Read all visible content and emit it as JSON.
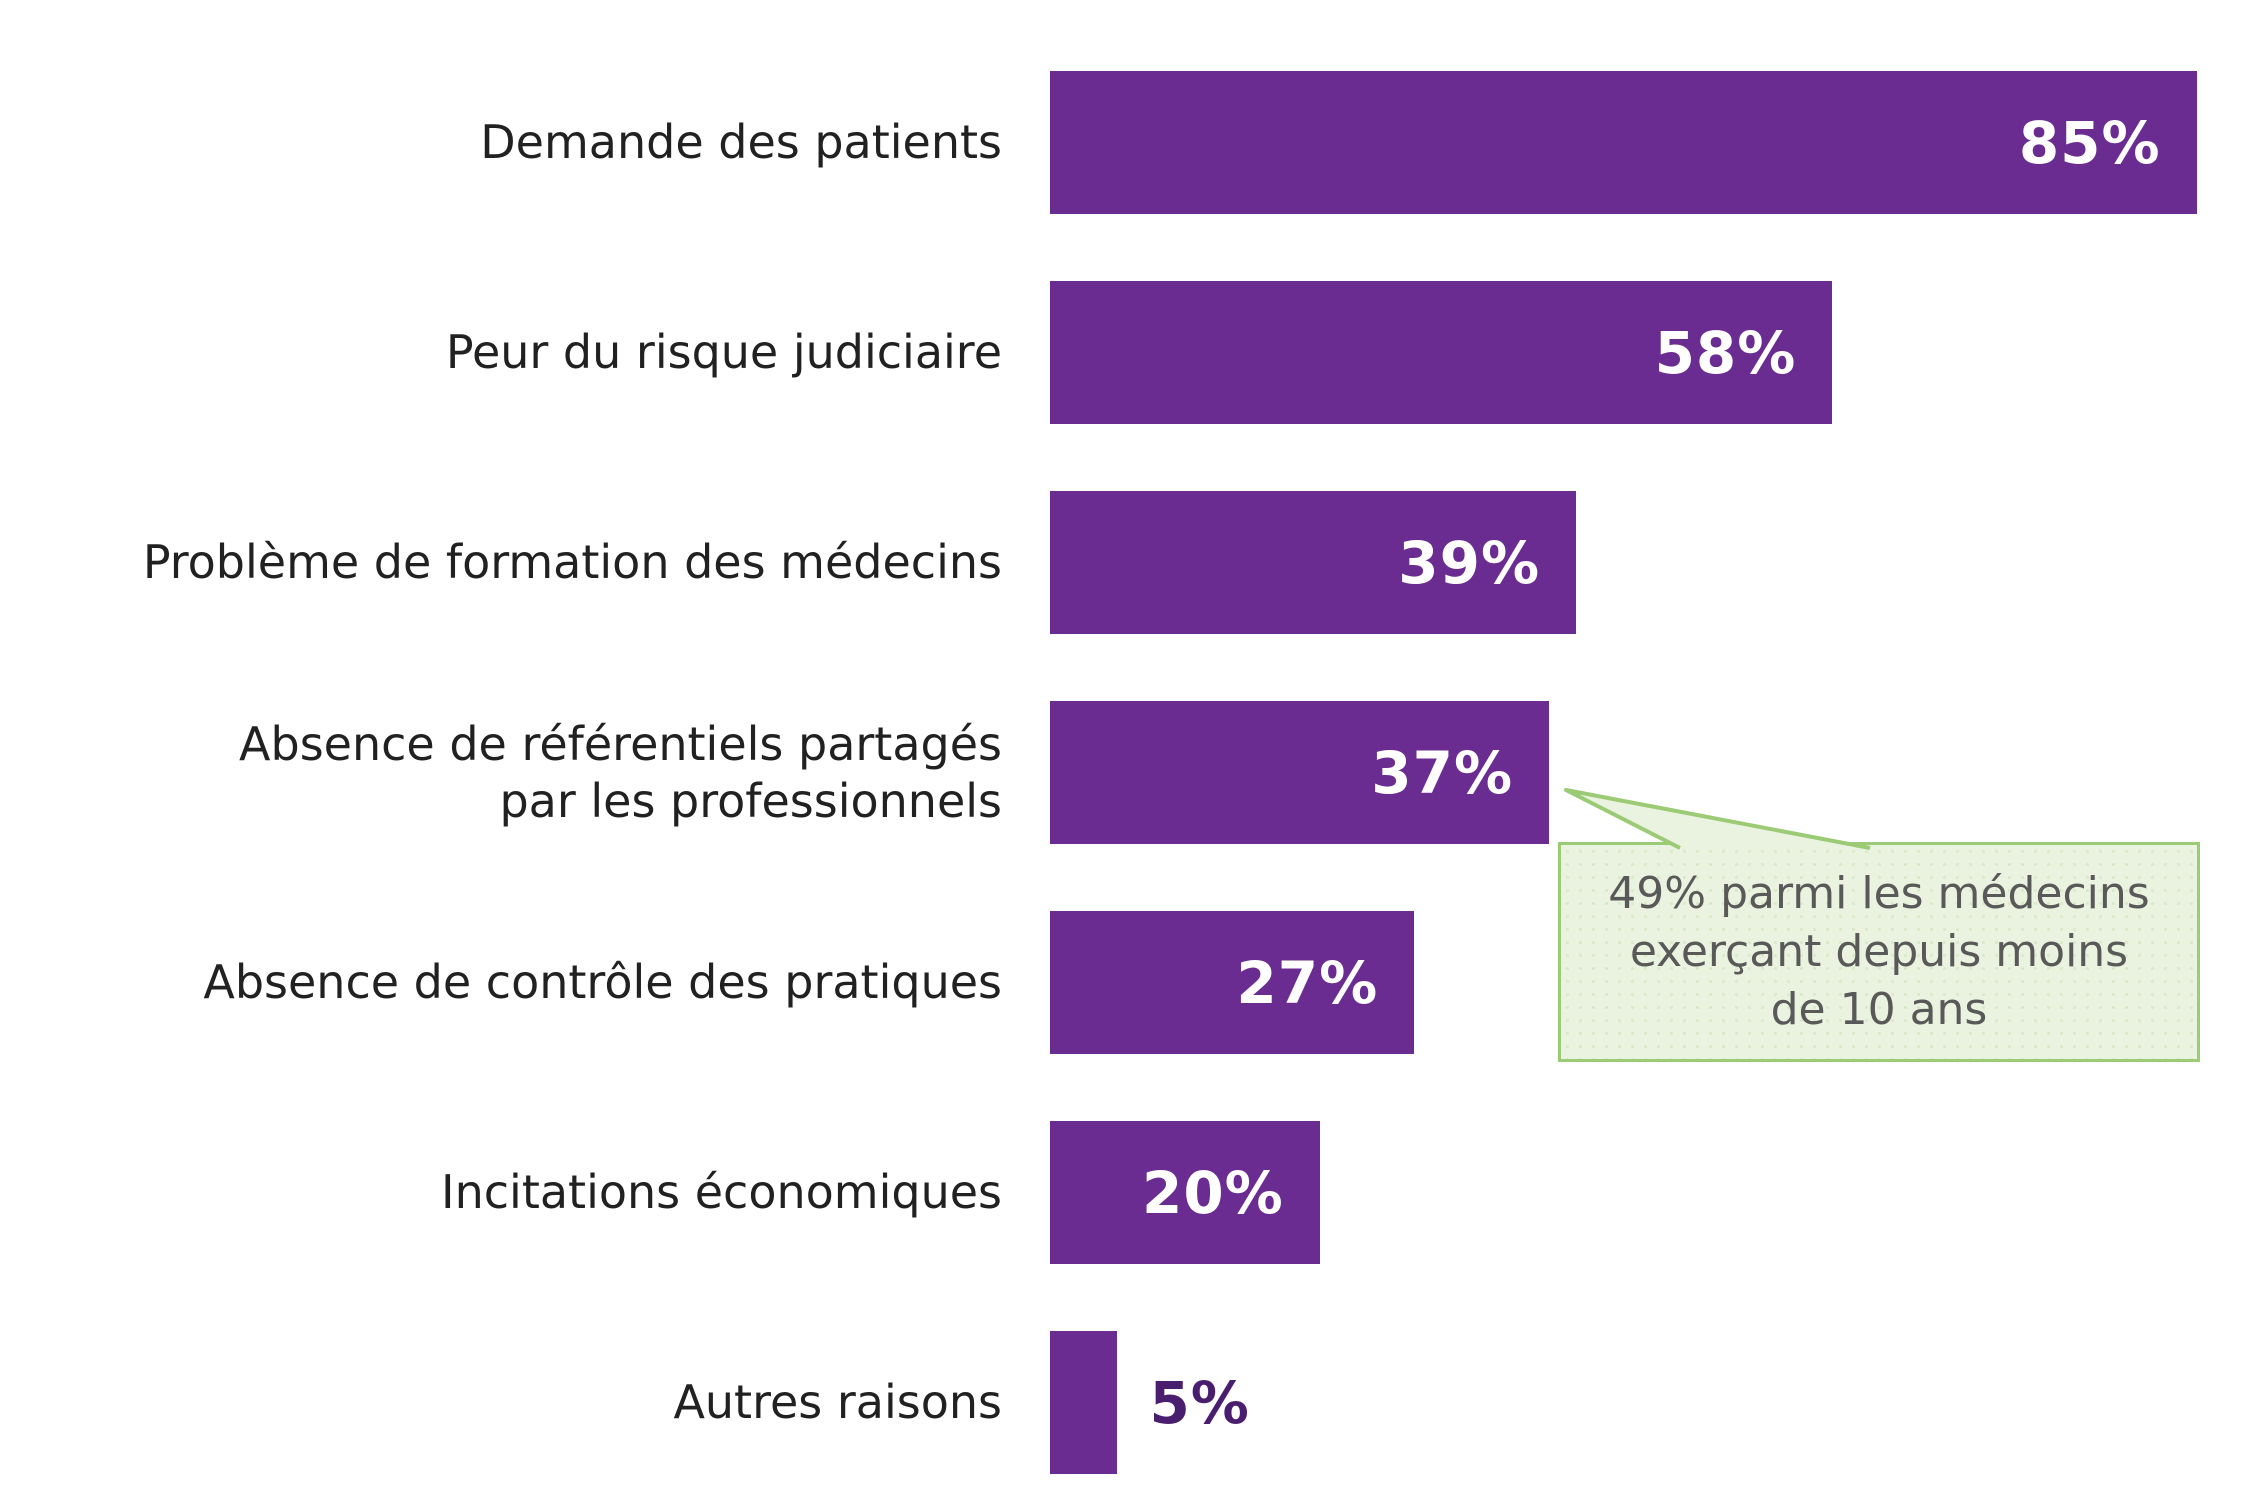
{
  "chart_data": {
    "type": "bar",
    "orientation": "horizontal",
    "title": "",
    "categories": [
      "Demande des patients",
      "Peur du risque judiciaire",
      "Problème de formation des médecins",
      "Absence de référentiels partagés\npar les professionnels",
      "Absence de contrôle des pratiques",
      "Incitations économiques",
      "Autres raisons"
    ],
    "values": [
      85,
      58,
      39,
      37,
      27,
      20,
      5
    ],
    "value_labels": [
      "85%",
      "58%",
      "39%",
      "37%",
      "27%",
      "20%",
      "5%"
    ],
    "xlim": [
      0,
      100
    ],
    "grid": false,
    "legend": false,
    "bar_color": "#6B2C91",
    "value_label_inside_color": "#FFFFFF",
    "value_label_outside_color": "#4A1E6E",
    "category_label_color": "#212121",
    "annotation": {
      "text": "49% parmi les médecins\nexerçant depuis moins\nde 10 ans",
      "attached_to": "Absence de référentiels partagés par les professionnels (37%)",
      "fill_color": "#EAF3E0",
      "border_color": "#9CCB75",
      "text_color": "#595959"
    }
  }
}
